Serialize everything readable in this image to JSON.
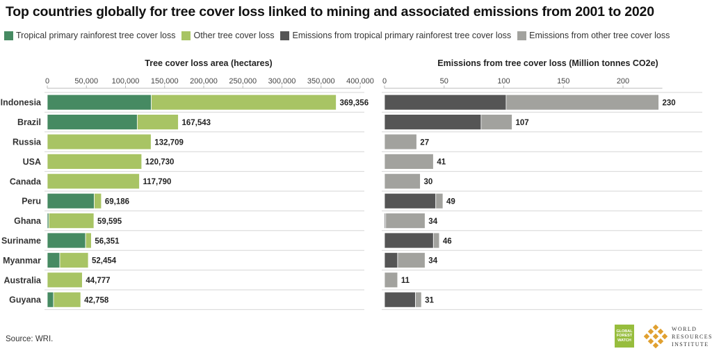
{
  "title": "Top countries globally for tree cover loss linked to mining and associated emissions from 2001 to 2020",
  "legend": [
    {
      "label": "Tropical primary rainforest tree cover loss",
      "color": "#468a62"
    },
    {
      "label": "Other tree cover loss",
      "color": "#a8c464"
    },
    {
      "label": "Emissions from tropical primary rainforest tree cover loss",
      "color": "#555555"
    },
    {
      "label": "Emissions from other tree cover loss",
      "color": "#a2a29e"
    }
  ],
  "source": "Source: WRI.",
  "logos": {
    "gfw_lines": [
      "GLOBAL",
      "FOREST",
      "WATCH"
    ],
    "wri_lines": [
      "WORLD",
      "RESOURCES",
      "INSTITUTE"
    ]
  },
  "chart_data": [
    {
      "type": "bar",
      "orientation": "horizontal",
      "stacked": true,
      "title": "Tree cover loss area (hectares)",
      "categories": [
        "Indonesia",
        "Brazil",
        "Russia",
        "USA",
        "Canada",
        "Peru",
        "Ghana",
        "Suriname",
        "Myanmar",
        "Australia",
        "Guyana"
      ],
      "xlim": [
        0,
        400000
      ],
      "ticks": [
        0,
        50000,
        100000,
        150000,
        200000,
        250000,
        300000,
        350000,
        400000
      ],
      "tick_labels": [
        "0",
        "50,000",
        "100,000",
        "150,000",
        "200,000",
        "250,000",
        "300,000",
        "350,000",
        "400,000"
      ],
      "series": [
        {
          "name": "Tropical primary rainforest tree cover loss",
          "color": "#468a62",
          "values": [
            133000,
            115000,
            0,
            0,
            0,
            60000,
            2000,
            49000,
            16000,
            0,
            8000
          ]
        },
        {
          "name": "Other tree cover loss",
          "color": "#a8c464",
          "values": [
            236356,
            52543,
            132709,
            120730,
            117790,
            9186,
            57595,
            7351,
            36454,
            44777,
            34758
          ]
        }
      ],
      "totals": [
        369356,
        167543,
        132709,
        120730,
        117790,
        69186,
        59595,
        56351,
        52454,
        44777,
        42758
      ],
      "total_labels": [
        "369,356",
        "167,543",
        "132,709",
        "120,730",
        "117,790",
        "69,186",
        "59,595",
        "56,351",
        "52,454",
        "44,777",
        "42,758"
      ],
      "grid": "horizontal separators"
    },
    {
      "type": "bar",
      "orientation": "horizontal",
      "stacked": true,
      "title": "Emissions from tree cover loss (Million tonnes CO2e)",
      "categories": [
        "Indonesia",
        "Brazil",
        "Russia",
        "USA",
        "Canada",
        "Peru",
        "Ghana",
        "Suriname",
        "Myanmar",
        "Australia",
        "Guyana"
      ],
      "xlim": [
        0,
        233
      ],
      "ticks": [
        0,
        50,
        100,
        150,
        200
      ],
      "tick_labels": [
        "0",
        "50",
        "100",
        "150",
        "200"
      ],
      "series": [
        {
          "name": "Emissions from tropical primary rainforest tree cover loss",
          "color": "#555555",
          "values": [
            102,
            81,
            0,
            0,
            0,
            43,
            1,
            41,
            11,
            0,
            26
          ]
        },
        {
          "name": "Emissions from other tree cover loss",
          "color": "#a2a29e",
          "values": [
            128,
            26,
            27,
            41,
            30,
            6,
            33,
            5,
            23,
            11,
            5
          ]
        }
      ],
      "totals": [
        230,
        107,
        27,
        41,
        30,
        49,
        34,
        46,
        34,
        11,
        31
      ],
      "total_labels": [
        "230",
        "107",
        "27",
        "41",
        "30",
        "49",
        "34",
        "46",
        "34",
        "11",
        "31"
      ],
      "grid": "horizontal separators"
    }
  ]
}
